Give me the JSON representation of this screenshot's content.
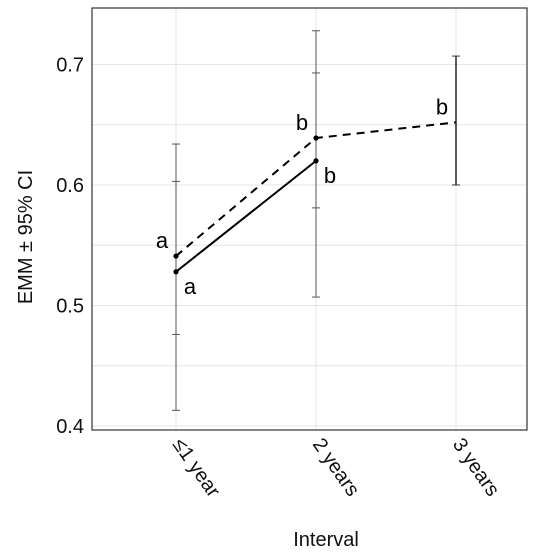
{
  "chart_data": {
    "type": "line",
    "title": "",
    "xlabel": "Interval",
    "ylabel": "EMM ± 95% CI",
    "categories": [
      "≤1 year",
      "2 years",
      "3 years"
    ],
    "ylim": [
      0.4,
      0.74
    ],
    "yticks": [
      0.4,
      0.5,
      0.6,
      0.7
    ],
    "grid": true,
    "series": [
      {
        "line_style": "solid",
        "points": [
          {
            "category": "≤1 year",
            "y": 0.528,
            "letter": "a",
            "ci_low": 0.413,
            "ci_high": 0.634
          },
          {
            "category": "2 years",
            "y": 0.62,
            "letter": "b",
            "ci_low": 0.507,
            "ci_high": 0.728
          }
        ]
      },
      {
        "line_style": "dashed",
        "points": [
          {
            "category": "≤1 year",
            "y": 0.541,
            "letter": "a",
            "ci_low": 0.476,
            "ci_high": 0.603
          },
          {
            "category": "2 years",
            "y": 0.639,
            "letter": "b",
            "ci_low": 0.581,
            "ci_high": 0.693
          },
          {
            "category": "3 years",
            "y": 0.652,
            "letter": "b",
            "ci_low": 0.6,
            "ci_high": 0.707
          }
        ]
      }
    ]
  }
}
